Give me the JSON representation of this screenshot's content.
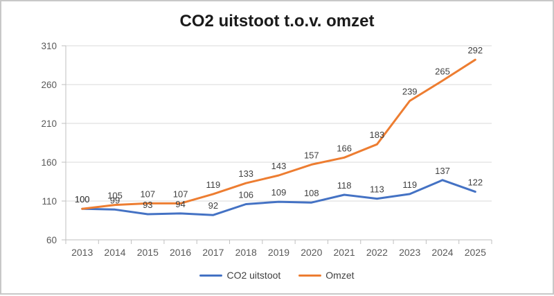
{
  "window": {
    "background": "#FFFFFF",
    "border_color": "#C8C8C8"
  },
  "chart_data": {
    "type": "line",
    "title": "CO2 uitstoot t.o.v. omzet",
    "categories": [
      "2013",
      "2014",
      "2015",
      "2016",
      "2017",
      "2018",
      "2019",
      "2020",
      "2021",
      "2022",
      "2023",
      "2024",
      "2025"
    ],
    "series": [
      {
        "name": "CO2 uitstoot",
        "color": "#4472C4",
        "values": [
          100,
          99,
          93,
          94,
          92,
          106,
          109,
          108,
          118,
          113,
          119,
          137,
          122
        ]
      },
      {
        "name": "Omzet",
        "color": "#ED7D31",
        "values": [
          100,
          105,
          107,
          107,
          119,
          133,
          143,
          157,
          166,
          183,
          239,
          265,
          292
        ]
      }
    ],
    "xlabel": "",
    "ylabel": "",
    "ylim": [
      60,
      310
    ],
    "y_ticks": [
      60,
      110,
      160,
      210,
      260,
      310
    ],
    "grid": "horizontal",
    "data_labels": "above",
    "legend_position": "bottom",
    "colors": {
      "gridline": "#D9D9D9",
      "axis": "#BFBFBF",
      "tick_label": "#595959",
      "data_label": "#404040",
      "title": "#1A1A1A",
      "legend_text": "#404040"
    }
  }
}
